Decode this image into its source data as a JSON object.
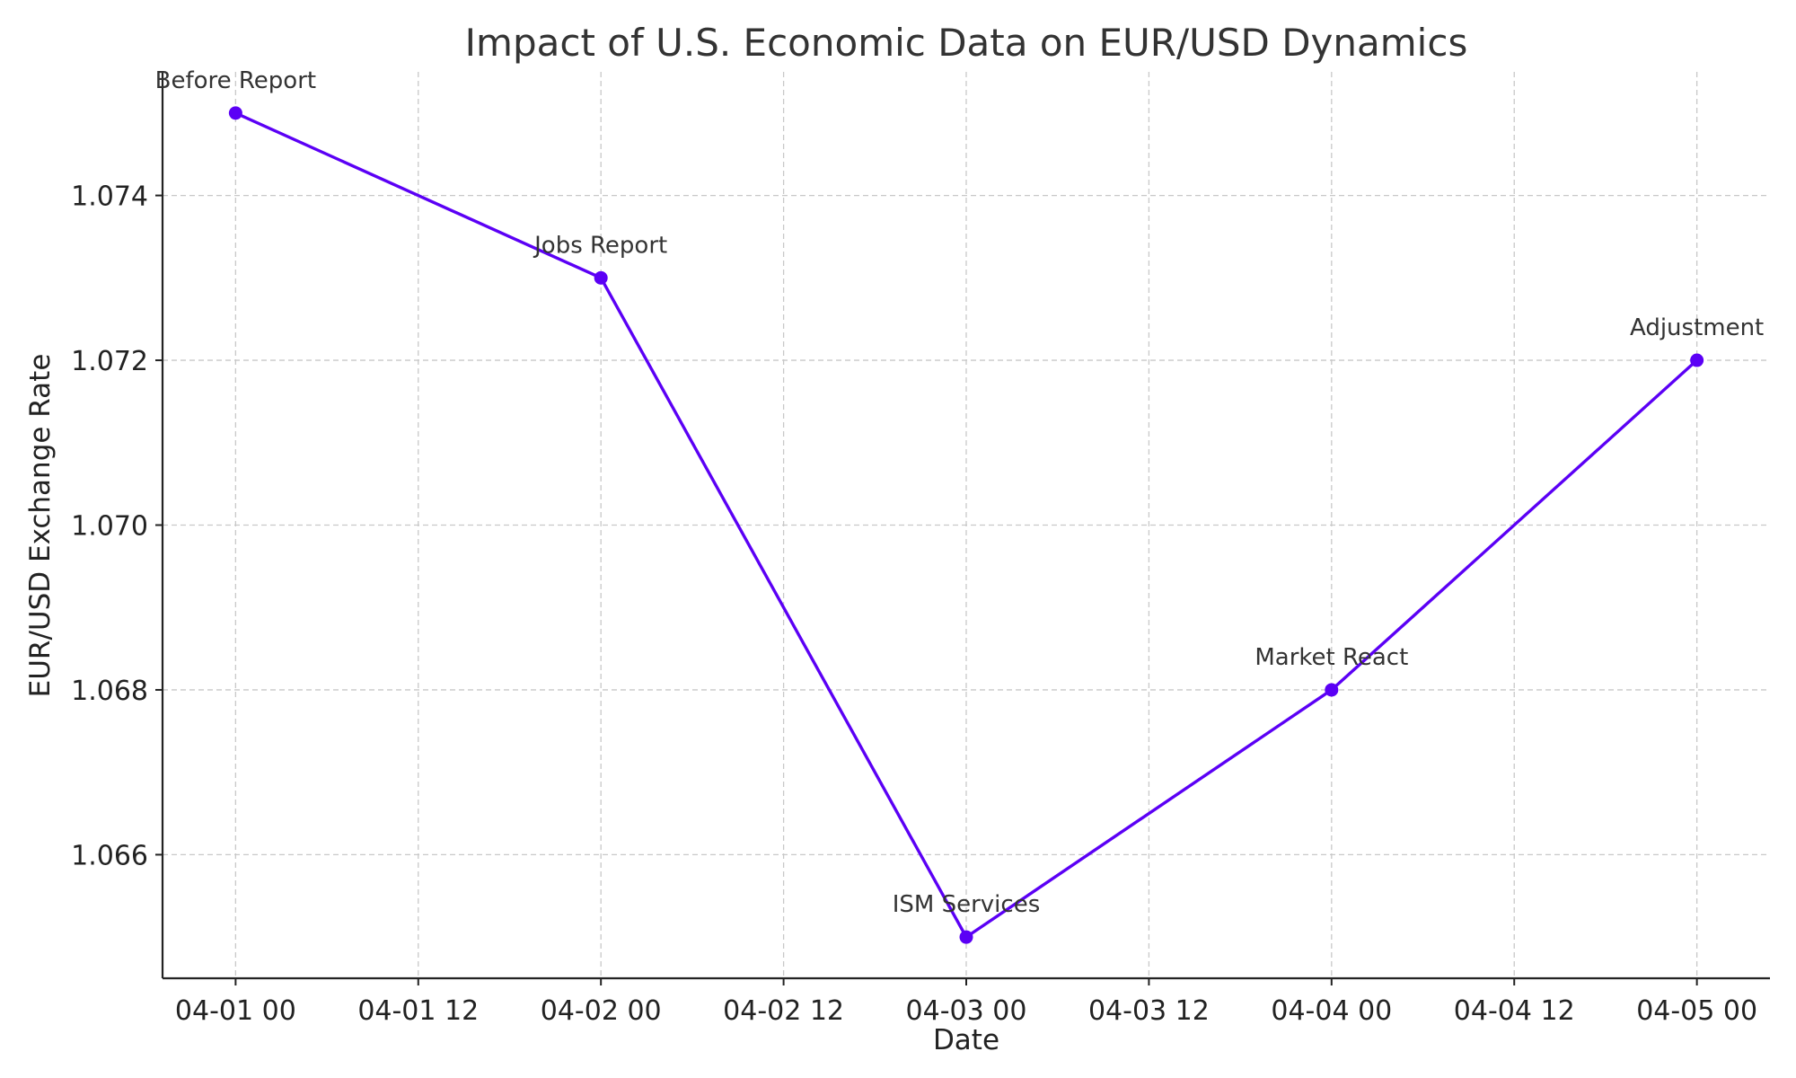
{
  "chart_data": {
    "type": "line",
    "title": "Impact of U.S. Economic Data on EUR/USD Dynamics",
    "xlabel": "Date",
    "ylabel": "EUR/USD Exchange Rate",
    "x": [
      "04-01 00",
      "04-02 00",
      "04-03 00",
      "04-04 00",
      "04-05 00"
    ],
    "x_days": [
      0,
      1,
      2,
      3,
      4
    ],
    "series": [
      {
        "name": "EUR/USD",
        "values": [
          1.075,
          1.073,
          1.065,
          1.068,
          1.072
        ],
        "color": "#5b00f5"
      }
    ],
    "annotations": [
      "Before Report",
      "Jobs Report",
      "ISM Services",
      "Market React",
      "Adjustment"
    ],
    "xticks": [
      "04-01 00",
      "04-01 12",
      "04-02 00",
      "04-02 12",
      "04-03 00",
      "04-03 12",
      "04-04 00",
      "04-04 12",
      "04-05 00"
    ],
    "yticks": [
      "1.066",
      "1.068",
      "1.070",
      "1.072",
      "1.074"
    ],
    "ytick_values": [
      1.066,
      1.068,
      1.07,
      1.072,
      1.074
    ],
    "xlim_days": [
      -0.2,
      4.2
    ],
    "ylim": [
      1.0645,
      1.0755
    ],
    "grid": true
  }
}
